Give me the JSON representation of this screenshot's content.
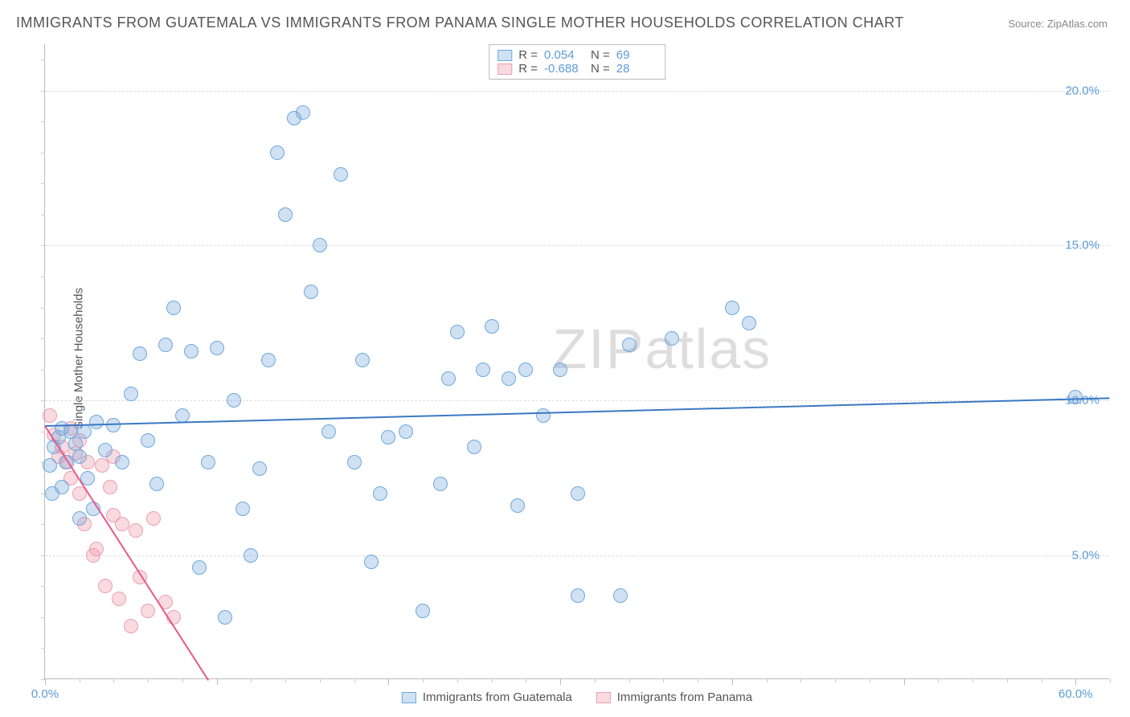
{
  "title": "IMMIGRANTS FROM GUATEMALA VS IMMIGRANTS FROM PANAMA SINGLE MOTHER HOUSEHOLDS CORRELATION CHART",
  "source": "Source: ZipAtlas.com",
  "ylabel": "Single Mother Households",
  "watermark_a": "ZIP",
  "watermark_b": "atlas",
  "chart": {
    "type": "scatter",
    "xlim": [
      0,
      62
    ],
    "ylim": [
      1,
      21.5
    ],
    "x_ticks_major": [
      0,
      10,
      20,
      30,
      40,
      50,
      60
    ],
    "x_tick_labels": [
      {
        "v": 0,
        "t": "0.0%"
      },
      {
        "v": 60,
        "t": "60.0%"
      }
    ],
    "y_gridlines": [
      5,
      10,
      15,
      20
    ],
    "y_tick_labels": [
      {
        "v": 5,
        "t": "5.0%"
      },
      {
        "v": 10,
        "t": "10.0%"
      },
      {
        "v": 15,
        "t": "15.0%"
      },
      {
        "v": 20,
        "t": "20.0%"
      }
    ],
    "grid_color": "#dddddd",
    "border_color": "#bbbbbb",
    "background": "#ffffff",
    "point_radius": 9,
    "series": {
      "guatemala": {
        "label": "Immigrants from Guatemala",
        "fill": "rgba(120,170,220,0.35)",
        "stroke": "#6fa8dc",
        "line_color": "#3b78c4",
        "trend": {
          "x1": 0,
          "y1": 9.2,
          "x2": 62,
          "y2": 10.1
        },
        "stats": {
          "R": "0.054",
          "N": "69"
        },
        "points": [
          [
            0.3,
            7.9
          ],
          [
            0.5,
            8.5
          ],
          [
            0.8,
            8.8
          ],
          [
            1.0,
            9.1
          ],
          [
            1.2,
            8.0
          ],
          [
            1.5,
            9.0
          ],
          [
            1.8,
            8.6
          ],
          [
            2.0,
            8.2
          ],
          [
            2.3,
            9.0
          ],
          [
            2.5,
            7.5
          ],
          [
            2.8,
            6.5
          ],
          [
            3.0,
            9.3
          ],
          [
            3.5,
            8.4
          ],
          [
            4.0,
            9.2
          ],
          [
            4.5,
            8.0
          ],
          [
            5.0,
            10.2
          ],
          [
            5.5,
            11.5
          ],
          [
            6.0,
            8.7
          ],
          [
            6.5,
            7.3
          ],
          [
            7.0,
            11.8
          ],
          [
            7.5,
            13.0
          ],
          [
            8.0,
            9.5
          ],
          [
            8.5,
            11.6
          ],
          [
            9.0,
            4.6
          ],
          [
            9.5,
            8.0
          ],
          [
            10.0,
            11.7
          ],
          [
            10.5,
            3.0
          ],
          [
            11.0,
            10.0
          ],
          [
            11.5,
            6.5
          ],
          [
            12.0,
            5.0
          ],
          [
            12.5,
            7.8
          ],
          [
            13.0,
            11.3
          ],
          [
            13.5,
            18.0
          ],
          [
            14.0,
            16.0
          ],
          [
            14.5,
            19.1
          ],
          [
            15.0,
            19.3
          ],
          [
            15.5,
            13.5
          ],
          [
            16.0,
            15.0
          ],
          [
            16.5,
            9.0
          ],
          [
            17.2,
            17.3
          ],
          [
            18.0,
            8.0
          ],
          [
            18.5,
            11.3
          ],
          [
            19.0,
            4.8
          ],
          [
            19.5,
            7.0
          ],
          [
            20.0,
            8.8
          ],
          [
            21.0,
            9.0
          ],
          [
            22.0,
            3.2
          ],
          [
            23.0,
            7.3
          ],
          [
            23.5,
            10.7
          ],
          [
            24.0,
            12.2
          ],
          [
            25.0,
            8.5
          ],
          [
            25.5,
            11.0
          ],
          [
            26.0,
            12.4
          ],
          [
            27.0,
            10.7
          ],
          [
            27.5,
            6.6
          ],
          [
            28.0,
            11.0
          ],
          [
            29.0,
            9.5
          ],
          [
            30.0,
            11.0
          ],
          [
            31.0,
            7.0
          ],
          [
            31.0,
            3.7
          ],
          [
            33.5,
            3.7
          ],
          [
            34.0,
            11.8
          ],
          [
            36.5,
            12.0
          ],
          [
            40.0,
            13.0
          ],
          [
            41.0,
            12.5
          ],
          [
            60.0,
            10.1
          ],
          [
            1.0,
            7.2
          ],
          [
            2.0,
            6.2
          ],
          [
            0.4,
            7.0
          ]
        ]
      },
      "panama": {
        "label": "Immigrants from Panama",
        "fill": "rgba(240,150,170,0.35)",
        "stroke": "#e8a0b0",
        "line_color": "#e85a8a",
        "trend": {
          "x1": 0,
          "y1": 9.2,
          "x2": 9.5,
          "y2": 1.0
        },
        "stats": {
          "R": "-0.688",
          "N": "28"
        },
        "points": [
          [
            0.3,
            9.5
          ],
          [
            0.5,
            8.9
          ],
          [
            0.8,
            8.2
          ],
          [
            1.0,
            8.5
          ],
          [
            1.3,
            8.0
          ],
          [
            1.5,
            7.5
          ],
          [
            1.8,
            8.3
          ],
          [
            2.0,
            7.0
          ],
          [
            2.3,
            6.0
          ],
          [
            2.5,
            8.0
          ],
          [
            2.8,
            5.0
          ],
          [
            3.0,
            5.2
          ],
          [
            3.3,
            7.9
          ],
          [
            3.5,
            4.0
          ],
          [
            3.8,
            7.2
          ],
          [
            4.0,
            6.3
          ],
          [
            4.3,
            3.6
          ],
          [
            4.5,
            6.0
          ],
          [
            5.0,
            2.7
          ],
          [
            5.3,
            5.8
          ],
          [
            5.5,
            4.3
          ],
          [
            6.0,
            3.2
          ],
          [
            6.3,
            6.2
          ],
          [
            7.0,
            3.5
          ],
          [
            7.5,
            3.0
          ],
          [
            4.0,
            8.2
          ],
          [
            2.0,
            8.7
          ],
          [
            1.5,
            9.1
          ]
        ]
      }
    }
  },
  "stats_rows": [
    {
      "swatch_fill": "rgba(120,170,220,0.35)",
      "swatch_stroke": "#6fa8dc",
      "R": "0.054",
      "N": "69"
    },
    {
      "swatch_fill": "rgba(240,150,170,0.35)",
      "swatch_stroke": "#e8a0b0",
      "R": "-0.688",
      "N": "28"
    }
  ],
  "legend_items": [
    {
      "swatch_fill": "rgba(120,170,220,0.35)",
      "swatch_stroke": "#6fa8dc",
      "label": "Immigrants from Guatemala"
    },
    {
      "swatch_fill": "rgba(240,150,170,0.35)",
      "swatch_stroke": "#e8a0b0",
      "label": "Immigrants from Panama"
    }
  ]
}
